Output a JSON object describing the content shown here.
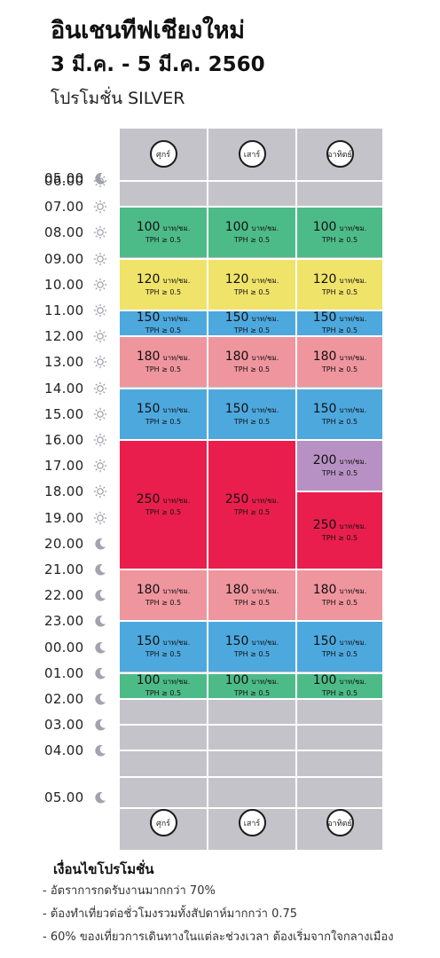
{
  "header": {
    "title": "อินเชนทีฟเชียงใหม่",
    "date_range": "3 มี.ค. - 5 มี.ค. 2560",
    "promo": "โปรโมชั่น SILVER"
  },
  "days": [
    "ศุกร์",
    "เสาร์",
    "อาทิตย์"
  ],
  "times": [
    {
      "label": "05.00",
      "icon": "moon-icon"
    },
    {
      "label": "06.00",
      "icon": "sun-icon"
    },
    {
      "label": "07.00",
      "icon": "sun-icon"
    },
    {
      "label": "08.00",
      "icon": "sun-icon"
    },
    {
      "label": "09.00",
      "icon": "sun-icon"
    },
    {
      "label": "10.00",
      "icon": "sun-icon"
    },
    {
      "label": "11.00",
      "icon": "sun-icon"
    },
    {
      "label": "12.00",
      "icon": "sun-icon"
    },
    {
      "label": "13.00",
      "icon": "sun-icon"
    },
    {
      "label": "14.00",
      "icon": "sun-icon"
    },
    {
      "label": "15.00",
      "icon": "sun-icon"
    },
    {
      "label": "16.00",
      "icon": "sun-icon"
    },
    {
      "label": "17.00",
      "icon": "sun-icon"
    },
    {
      "label": "18.00",
      "icon": "sun-icon"
    },
    {
      "label": "19.00",
      "icon": "sun-icon"
    },
    {
      "label": "20.00",
      "icon": "moon-icon"
    },
    {
      "label": "21.00",
      "icon": "moon-icon"
    },
    {
      "label": "22.00",
      "icon": "moon-icon"
    },
    {
      "label": "23.00",
      "icon": "moon-icon"
    },
    {
      "label": "00.00",
      "icon": "moon-icon"
    },
    {
      "label": "01.00",
      "icon": "moon-icon"
    },
    {
      "label": "02.00",
      "icon": "moon-icon"
    },
    {
      "label": "03.00",
      "icon": "moon-icon"
    },
    {
      "label": "04.00",
      "icon": "moon-icon"
    },
    {
      "label": "05.00",
      "icon": "moon-icon"
    }
  ],
  "rate_unit": "บาท/ชม.",
  "tph_condition": "TPH ≥ 0.5",
  "colors": {
    "green": "#4dbb88",
    "yellow": "#efe36a",
    "blue": "#4da8de",
    "pink": "#ef959e",
    "red": "#ea1e4c",
    "purple": "#b791c4",
    "empty": "#c3c3c9"
  },
  "blocks": [
    {
      "day": 0,
      "from": "07.00",
      "to": "09.00",
      "price": "100",
      "color": "green"
    },
    {
      "day": 1,
      "from": "07.00",
      "to": "09.00",
      "price": "100",
      "color": "green"
    },
    {
      "day": 2,
      "from": "07.00",
      "to": "09.00",
      "price": "100",
      "color": "green"
    },
    {
      "day": 0,
      "from": "09.00",
      "to": "11.00",
      "price": "120",
      "color": "yellow"
    },
    {
      "day": 1,
      "from": "09.00",
      "to": "11.00",
      "price": "120",
      "color": "yellow"
    },
    {
      "day": 2,
      "from": "09.00",
      "to": "11.00",
      "price": "120",
      "color": "yellow"
    },
    {
      "day": 0,
      "from": "11.00",
      "to": "12.00",
      "price": "150",
      "color": "blue"
    },
    {
      "day": 1,
      "from": "11.00",
      "to": "12.00",
      "price": "150",
      "color": "blue"
    },
    {
      "day": 2,
      "from": "11.00",
      "to": "12.00",
      "price": "150",
      "color": "blue"
    },
    {
      "day": 0,
      "from": "12.00",
      "to": "14.00",
      "price": "180",
      "color": "pink"
    },
    {
      "day": 1,
      "from": "12.00",
      "to": "14.00",
      "price": "180",
      "color": "pink"
    },
    {
      "day": 2,
      "from": "12.00",
      "to": "14.00",
      "price": "180",
      "color": "pink"
    },
    {
      "day": 0,
      "from": "14.00",
      "to": "16.00",
      "price": "150",
      "color": "blue"
    },
    {
      "day": 1,
      "from": "14.00",
      "to": "16.00",
      "price": "150",
      "color": "blue"
    },
    {
      "day": 2,
      "from": "14.00",
      "to": "16.00",
      "price": "150",
      "color": "blue"
    },
    {
      "day": 0,
      "from": "16.00",
      "to": "21.00",
      "price": "250",
      "color": "red"
    },
    {
      "day": 1,
      "from": "16.00",
      "to": "21.00",
      "price": "250",
      "color": "red"
    },
    {
      "day": 2,
      "from": "16.00",
      "to": "18.00",
      "price": "200",
      "color": "purple"
    },
    {
      "day": 2,
      "from": "18.00",
      "to": "21.00",
      "price": "250",
      "color": "red"
    },
    {
      "day": 0,
      "from": "21.00",
      "to": "23.00",
      "price": "180",
      "color": "pink"
    },
    {
      "day": 1,
      "from": "21.00",
      "to": "23.00",
      "price": "180",
      "color": "pink"
    },
    {
      "day": 2,
      "from": "21.00",
      "to": "23.00",
      "price": "180",
      "color": "pink"
    },
    {
      "day": 0,
      "from": "23.00",
      "to": "01.00",
      "price": "150",
      "color": "blue"
    },
    {
      "day": 1,
      "from": "23.00",
      "to": "01.00",
      "price": "150",
      "color": "blue"
    },
    {
      "day": 2,
      "from": "23.00",
      "to": "01.00",
      "price": "150",
      "color": "blue"
    },
    {
      "day": 0,
      "from": "01.00",
      "to": "02.00",
      "price": "100",
      "color": "green"
    },
    {
      "day": 1,
      "from": "01.00",
      "to": "02.00",
      "price": "100",
      "color": "green"
    },
    {
      "day": 2,
      "from": "01.00",
      "to": "02.00",
      "price": "100",
      "color": "green"
    }
  ],
  "conditions": {
    "title": "เงื่อนไขโปรโมชั่น",
    "items": [
      "- อัตราการกดรับงานมากกว่า 70%",
      "- ต้องทำเที่ยวต่อชั่วโมงรวมทั้งสัปดาห์มากกว่า 0.75",
      "- 60% ของเที่ยวการเดินทางในแต่ละช่วงเวลา ต้องเริ่มจากใจกลางเมือง"
    ]
  }
}
